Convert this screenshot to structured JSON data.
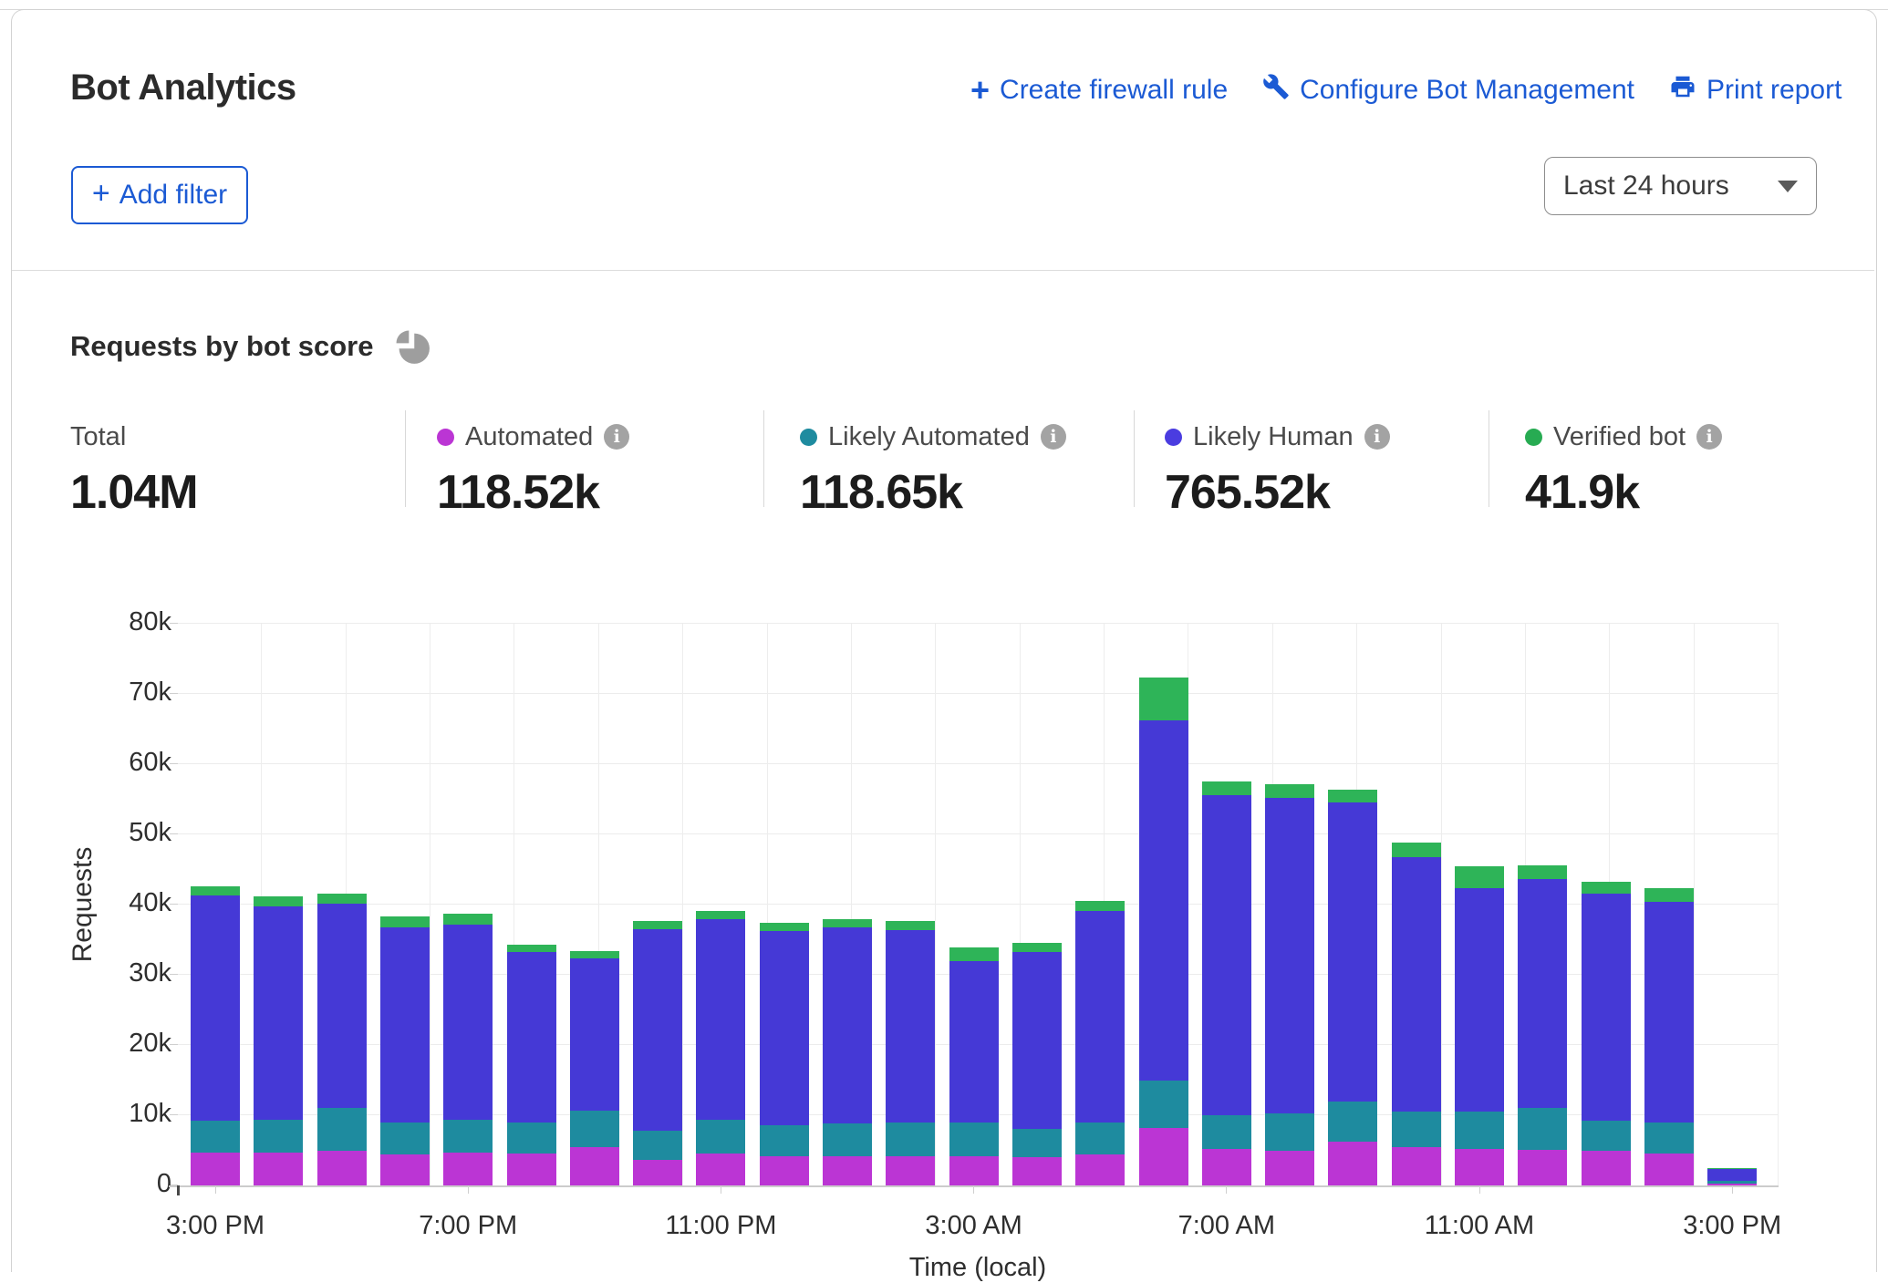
{
  "panel": {
    "title": "Bot Analytics",
    "links": [
      {
        "label": "Create firewall rule",
        "icon": "plus-icon"
      },
      {
        "label": "Configure Bot Management",
        "icon": "wrench-icon"
      },
      {
        "label": "Print report",
        "icon": "printer-icon"
      }
    ],
    "add_filter_label": "Add filter",
    "time_range_value": "Last 24 hours"
  },
  "section": {
    "title": "Requests by bot score",
    "icon": "pie-chart-icon"
  },
  "stats": [
    {
      "label": "Total",
      "value": "1.04M",
      "dot_color": null,
      "has_info": false
    },
    {
      "label": "Automated",
      "value": "118.52k",
      "dot_color": "#bb35d4",
      "has_info": true
    },
    {
      "label": "Likely Automated",
      "value": "118.65k",
      "dot_color": "#1e8b9f",
      "has_info": true
    },
    {
      "label": "Likely Human",
      "value": "765.52k",
      "dot_color": "#4a3ce0",
      "has_info": true
    },
    {
      "label": "Verified bot",
      "value": "41.9k",
      "dot_color": "#27ab52",
      "has_info": true
    }
  ],
  "colors": {
    "accent_blue": "#1b5ad4",
    "automated": "#bb35d4",
    "likely_automated": "#1e8b9f",
    "likely_human": "#4539d6",
    "verified_bot": "#2eb458"
  },
  "chart_data": {
    "type": "bar",
    "stacked": true,
    "unit": "k requests",
    "ylabel": "Requests",
    "xlabel": "Time (local)",
    "ylim": [
      0,
      80
    ],
    "y_ticks": [
      "0",
      "10k",
      "20k",
      "30k",
      "40k",
      "50k",
      "60k",
      "70k",
      "80k"
    ],
    "x_tick_labels": [
      "3:00 PM",
      "7:00 PM",
      "11:00 PM",
      "3:00 AM",
      "7:00 AM",
      "11:00 AM",
      "3:00 PM"
    ],
    "x_tick_positions": [
      0,
      4,
      8,
      12,
      16,
      20,
      24
    ],
    "num_bars": 25,
    "series": [
      {
        "name": "Automated",
        "color": "#bb35d4",
        "values": [
          4.7,
          4.7,
          5.0,
          4.4,
          4.7,
          4.5,
          5.4,
          3.7,
          4.6,
          4.1,
          4.2,
          4.1,
          4.2,
          4.0,
          4.4,
          8.2,
          5.2,
          5.0,
          6.2,
          5.5,
          5.2,
          5.1,
          4.9,
          4.6,
          0.3
        ]
      },
      {
        "name": "Likely Automated",
        "color": "#1e8b9f",
        "values": [
          4.5,
          4.6,
          6.0,
          4.6,
          4.6,
          4.5,
          5.2,
          4.1,
          4.8,
          4.5,
          4.6,
          4.9,
          4.8,
          4.1,
          4.6,
          6.7,
          4.8,
          5.3,
          5.8,
          5.0,
          5.3,
          5.9,
          4.3,
          4.4,
          0.3
        ]
      },
      {
        "name": "Likely Human",
        "color": "#4539d6",
        "values": [
          32.1,
          30.5,
          29.1,
          27.8,
          27.9,
          24.2,
          21.8,
          28.7,
          28.5,
          27.6,
          27.9,
          27.4,
          22.9,
          25.1,
          30.1,
          51.3,
          45.6,
          44.9,
          42.5,
          36.3,
          31.9,
          32.7,
          32.4,
          31.4,
          1.8
        ]
      },
      {
        "name": "Verified bot",
        "color": "#2eb458",
        "values": [
          1.3,
          1.4,
          1.5,
          1.5,
          1.5,
          1.1,
          1.0,
          1.2,
          1.2,
          1.2,
          1.2,
          1.3,
          2.0,
          1.4,
          1.4,
          6.1,
          1.9,
          2.0,
          1.9,
          2.0,
          3.1,
          1.9,
          1.7,
          1.9,
          0.1
        ]
      }
    ]
  }
}
